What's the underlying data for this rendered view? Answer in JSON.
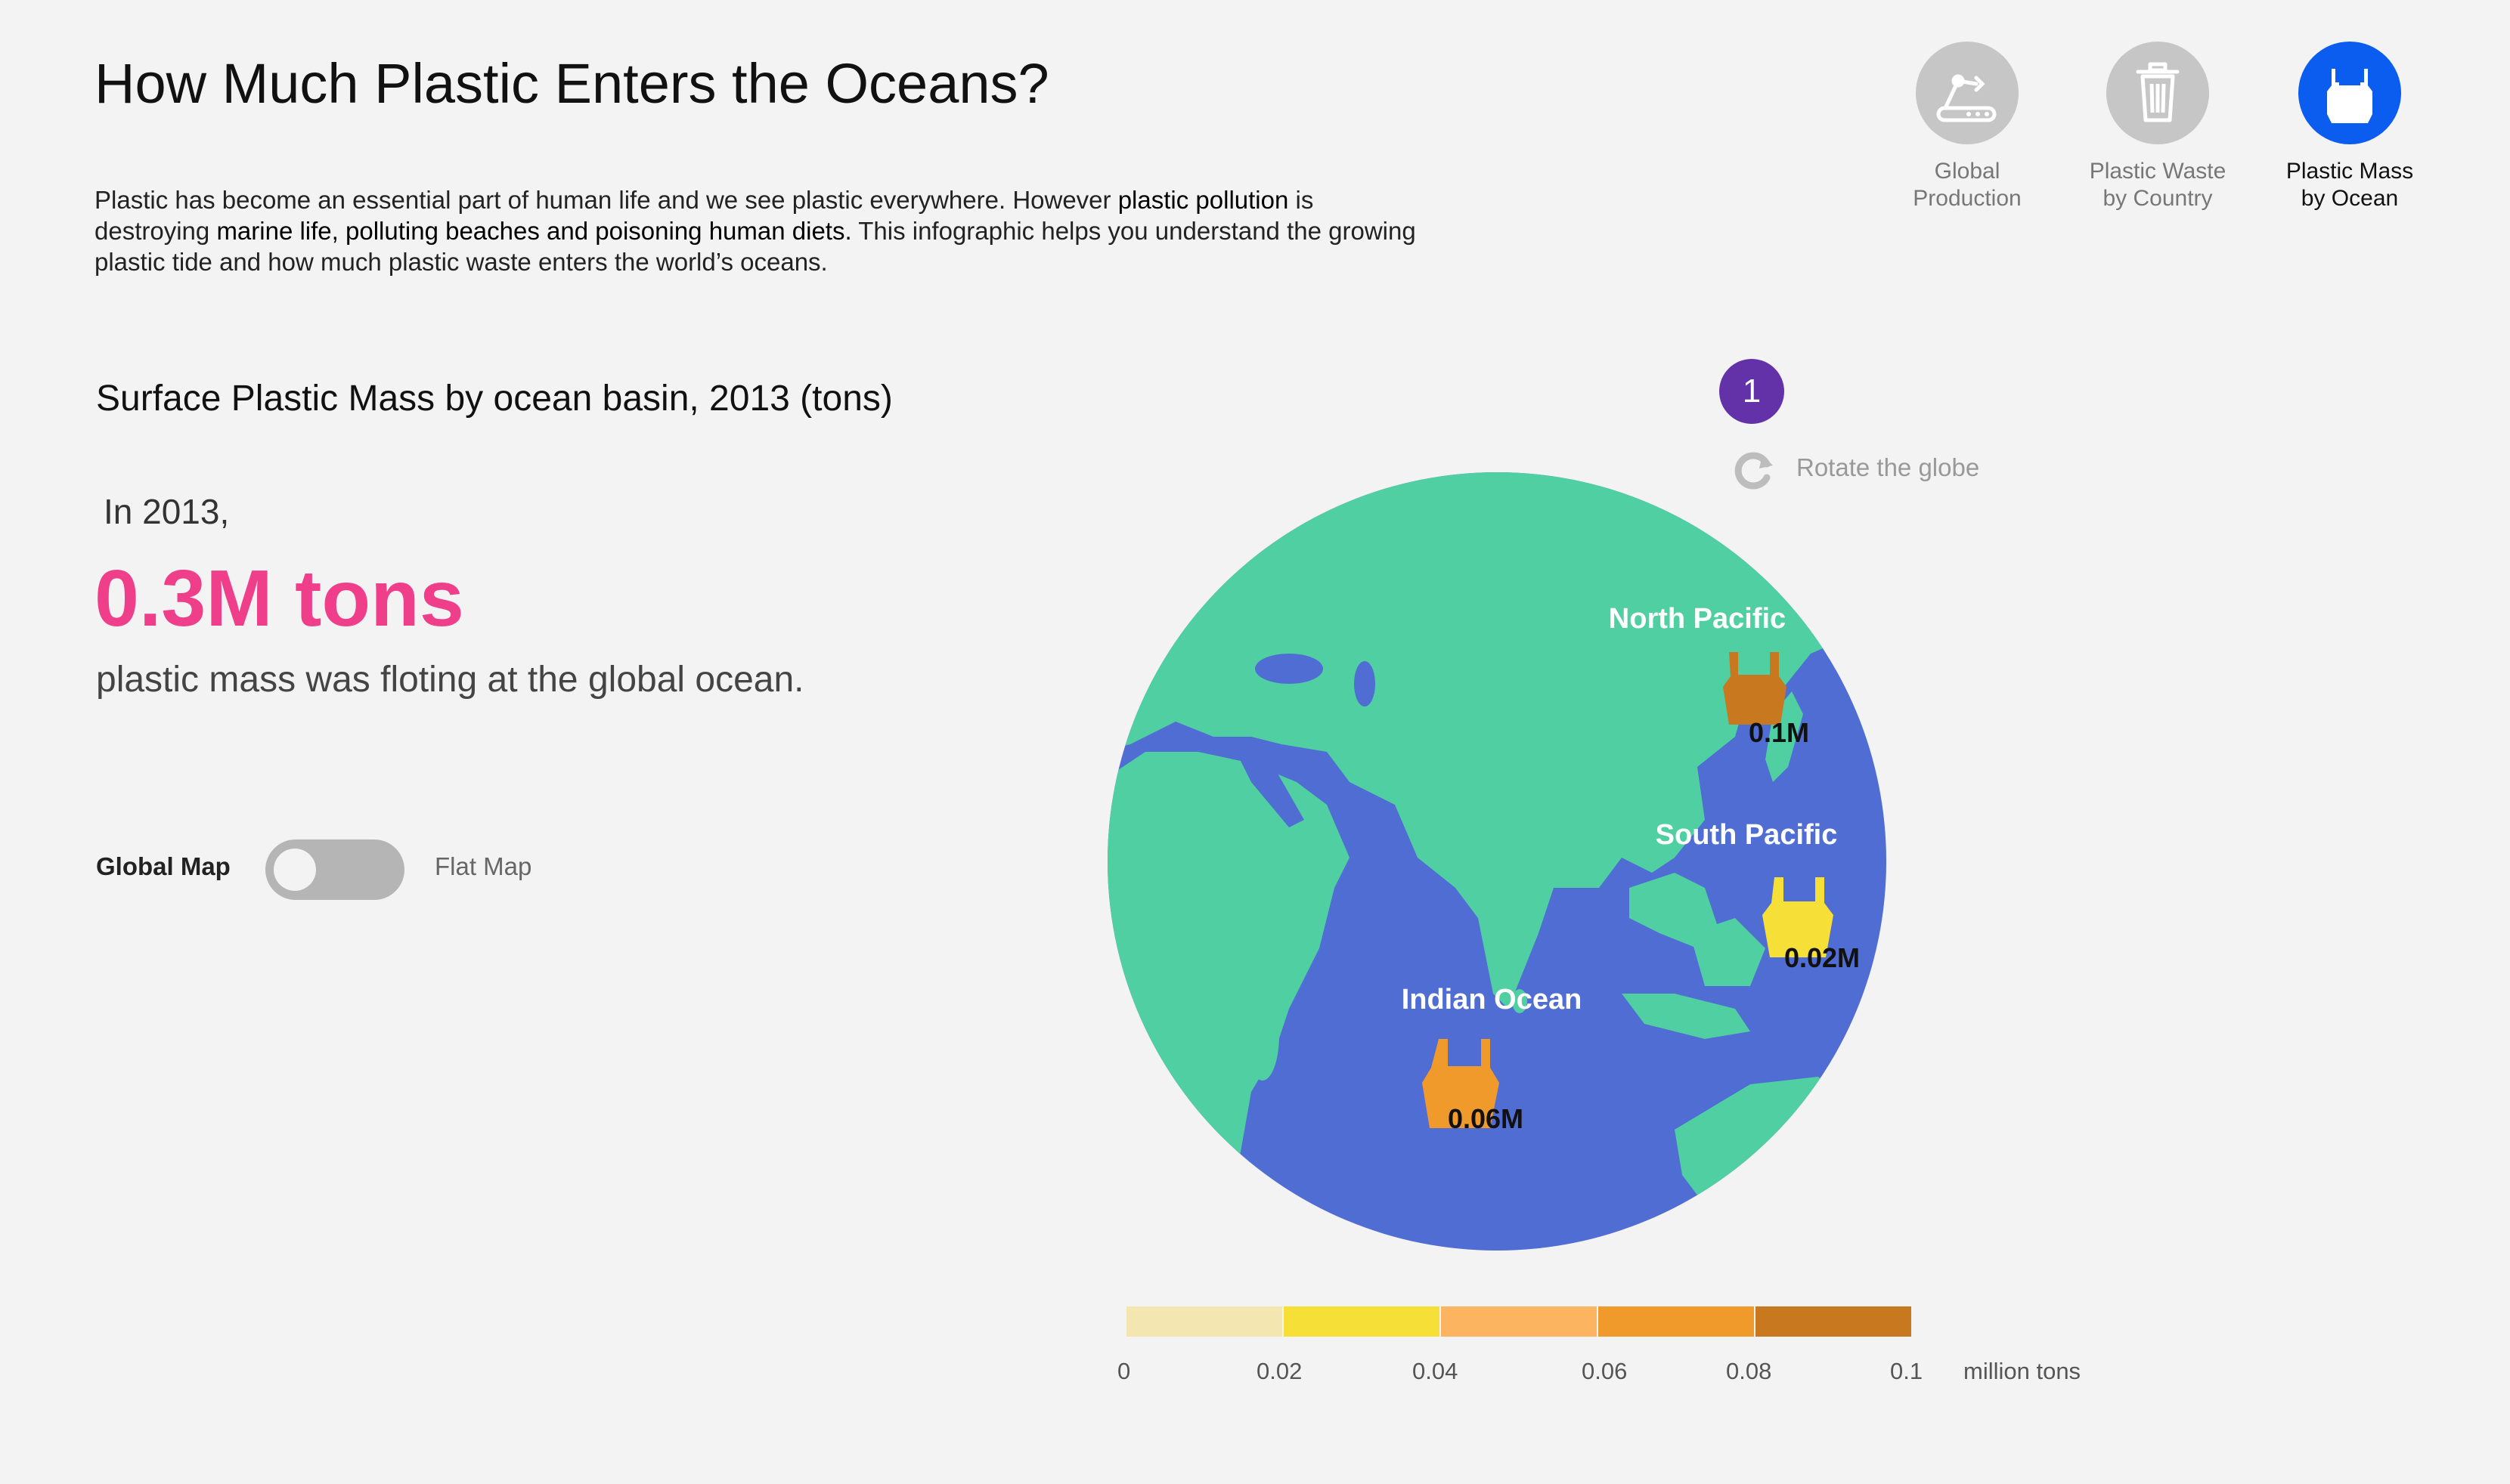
{
  "header": {
    "title": "How Much Plastic Enters the Oceans?",
    "intro": {
      "part1": "Plastic has become an essential part of human life and we see plastic everywhere. However ",
      "hl1": "plastic pollution",
      "part2": " is destroying ",
      "hl2": "marine life, polluting beaches and poisoning human diets.",
      "part3": " This infographic helps you understand the growing plastic tide and how much plastic waste enters the world’s oceans."
    }
  },
  "nav": {
    "items": [
      {
        "label_line1": "Global",
        "label_line2": "Production",
        "icon": "factory-icon",
        "active": false
      },
      {
        "label_line1": "Plastic Waste",
        "label_line2": "by Country",
        "icon": "trash-can-icon",
        "active": false
      },
      {
        "label_line1": "Plastic Mass",
        "label_line2": "by Ocean",
        "icon": "plastic-bag-icon",
        "active": true
      }
    ]
  },
  "main": {
    "chart_title": "Surface Plastic Mass by ocean basin, 2013  (tons)",
    "year_line": "In 2013,",
    "big_number": "0.3M tons",
    "subline": "plastic mass was floting at the global ocean."
  },
  "toggle": {
    "left_label": "Global Map",
    "right_label": "Flat Map",
    "state": "global"
  },
  "globe_controls": {
    "step": "1",
    "rotate_label": "Rotate the globe",
    "rotate_icon": "rotate-icon"
  },
  "colors": {
    "ocean": "#4f6dd3",
    "land": "#4fcfa2",
    "accent_pink": "#ef3f8a",
    "active_nav": "#0b5df0",
    "step_badge": "#6331a8"
  },
  "chart_data": {
    "type": "map",
    "title": "Surface Plastic Mass by ocean basin, 2013  (tons)",
    "unit": "million tons",
    "regions": [
      {
        "name": "North Pacific",
        "label": "0.1M",
        "value": 0.1,
        "color": "#c8781e"
      },
      {
        "name": "South Pacific",
        "label": "0.02M",
        "value": 0.02,
        "color": "#f6df37"
      },
      {
        "name": "Indian Ocean",
        "label": "0.06M",
        "value": 0.06,
        "color": "#f19a2c"
      }
    ],
    "legend": {
      "ticks": [
        "0",
        "0.02",
        "0.04",
        "0.06",
        "0.08",
        "0.1"
      ],
      "colors": [
        "#f3e6b0",
        "#f6df37",
        "#fdb460",
        "#f19a2c",
        "#c8781e"
      ],
      "unit": "million tons"
    }
  }
}
